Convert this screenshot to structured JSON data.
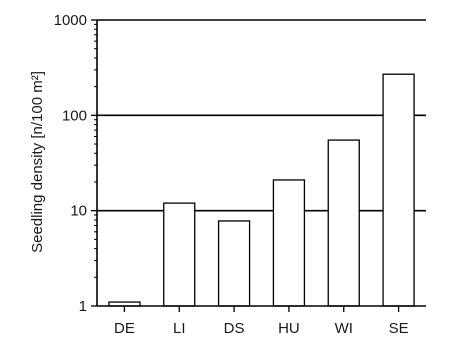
{
  "chart_data": {
    "type": "bar",
    "title": "",
    "xlabel": "",
    "ylabel": "Seedling density [n/100 m²]",
    "yscale": "log",
    "ylim": [
      1,
      1000
    ],
    "yticks": [
      1,
      10,
      100,
      1000
    ],
    "ytick_labels": [
      "1",
      "10",
      "100",
      "1000"
    ],
    "grid": "horizontal at 10 and 100",
    "legend": "none",
    "categories": [
      "DE",
      "LI",
      "DS",
      "HU",
      "WI",
      "SE"
    ],
    "values": [
      1.1,
      12,
      7.8,
      21,
      55,
      270
    ],
    "colors": {
      "bar_fill": "#ffffff",
      "stroke": "#000000"
    }
  }
}
